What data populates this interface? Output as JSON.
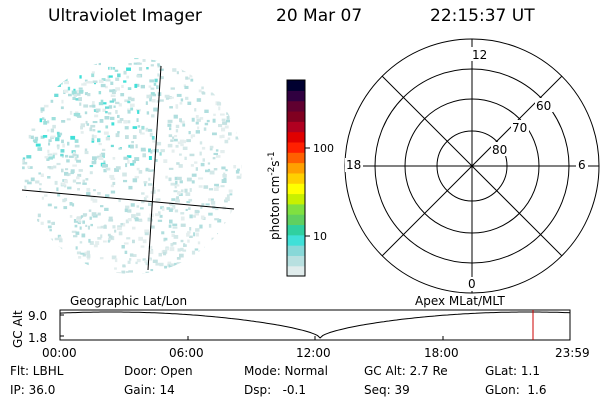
{
  "header": {
    "instrument": "Ultraviolet Imager",
    "date": "20 Mar 07",
    "time": "22:15:37 UT"
  },
  "colorbar": {
    "unit_label": "photon cm",
    "unit_exp1": "-2",
    "unit_s": "s",
    "unit_exp2": "-1",
    "ticks": [
      "100",
      "10"
    ],
    "colors": [
      "#e0ecec",
      "#b8e0e0",
      "#88d8d8",
      "#40e0d8",
      "#30d0a0",
      "#60d060",
      "#80e040",
      "#c8f000",
      "#ffff00",
      "#ffd000",
      "#ffa000",
      "#ff6000",
      "#ff2000",
      "#e00000",
      "#b00020",
      "#800020",
      "#600030",
      "#300040",
      "#000030"
    ]
  },
  "polar_plot": {
    "mlt_labels": {
      "top": "12",
      "left": "18",
      "right": "6",
      "bottom": "0"
    },
    "lat_labels": [
      "60",
      "70",
      "80"
    ]
  },
  "map_labels": {
    "left": "Geographic Lat/Lon",
    "right": "Apex MLat/MLT"
  },
  "alt_panel": {
    "ylabel": "GC Alt",
    "yticks": [
      "9.0",
      "1.8"
    ],
    "xticks": [
      "00:00",
      "06:00",
      "12:00",
      "18:00",
      "23:59"
    ],
    "marker_color": "#cc0000"
  },
  "info": {
    "flt": "Flt: LBHL",
    "door": "Door: Open",
    "mode": "Mode: Normal",
    "gc_alt": "GC Alt: 2.7 Re",
    "glat": "GLat:  1.1",
    "ip": "IP: 36.0",
    "gain": "Gain: 14",
    "dsp": "Dsp:   -0.1",
    "seq": "Seq: 39",
    "glon": "GLon:  1.6"
  }
}
